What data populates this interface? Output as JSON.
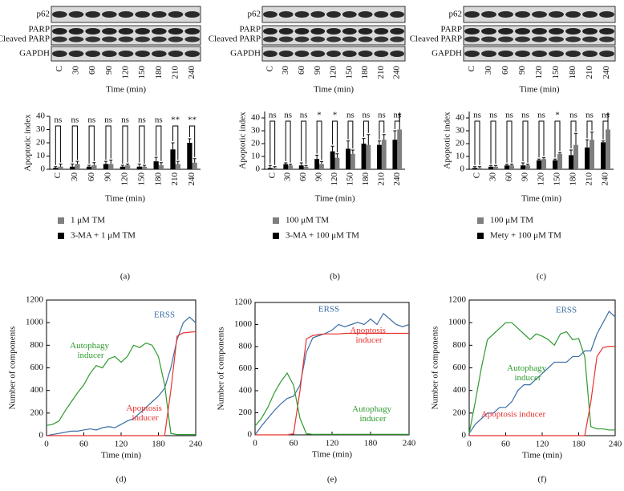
{
  "blots": [
    {
      "rows": [
        "p62",
        "PARP",
        "Cleaved PARP",
        "GAPDH"
      ],
      "lanes": [
        "C",
        "30",
        "60",
        "90",
        "120",
        "150",
        "180",
        "210",
        "240"
      ],
      "xlabel": "Time (min)"
    },
    {
      "rows": [
        "p62",
        "PARP",
        "Cleaved PARP",
        "GAPDH"
      ],
      "lanes": [
        "C",
        "30",
        "60",
        "90",
        "120",
        "150",
        "180",
        "210",
        "240"
      ],
      "xlabel": "Time (min)"
    },
    {
      "rows": [
        "p62",
        "PARP",
        "Cleaved PARP",
        "GAPDH"
      ],
      "lanes": [
        "C",
        "30",
        "60",
        "90",
        "120",
        "150",
        "180",
        "210",
        "240"
      ],
      "xlabel": "Time (min)"
    }
  ],
  "chart_data": [
    {
      "type": "bar",
      "ylabel": "Apoptotic index",
      "xlabel": "Time (min)",
      "categories": [
        "C",
        "30",
        "60",
        "90",
        "120",
        "150",
        "180",
        "210",
        "240"
      ],
      "ylim": [
        0,
        40
      ],
      "yticks": [
        0,
        10,
        20,
        30,
        40
      ],
      "annotations": [
        "ns",
        "ns",
        "ns",
        "ns",
        "ns",
        "ns",
        "ns",
        "**",
        "**"
      ],
      "series": [
        {
          "name": "1 μM TM",
          "color": "#7f7f7f",
          "values": [
            2,
            4,
            3,
            4,
            3,
            2,
            3,
            4,
            5
          ],
          "errors": [
            2,
            2,
            2,
            3,
            1,
            1,
            2,
            2,
            3
          ]
        },
        {
          "name": "3-MA + 1 μM TM",
          "color": "#000000",
          "values": [
            1,
            2,
            2,
            4,
            2,
            2,
            6,
            15,
            20
          ],
          "errors": [
            1,
            2,
            1,
            2,
            1,
            2,
            3,
            5,
            3
          ]
        }
      ]
    },
    {
      "type": "bar",
      "ylabel": "Apoptotic index",
      "xlabel": "Time (min)",
      "categories": [
        "C",
        "30",
        "60",
        "90",
        "120",
        "150",
        "180",
        "210",
        "240"
      ],
      "ylim": [
        0,
        45
      ],
      "yticks": [
        0,
        10,
        20,
        30,
        40
      ],
      "annotations": [
        "ns",
        "ns",
        "ns",
        "*",
        "*",
        "ns",
        "ns",
        "ns",
        "ns"
      ],
      "series": [
        {
          "name": "100 μM TM",
          "color": "#7f7f7f",
          "values": [
            1,
            3,
            2,
            4,
            9,
            12,
            19,
            23,
            31
          ],
          "errors": [
            1,
            1,
            1,
            2,
            3,
            3,
            8,
            4,
            12
          ]
        },
        {
          "name": "3-MA + 100 μM TM",
          "color": "#000000",
          "values": [
            1,
            4,
            3,
            8,
            14,
            16,
            20,
            19,
            23
          ],
          "errors": [
            2,
            1,
            2,
            3,
            4,
            6,
            4,
            3,
            7
          ]
        }
      ]
    },
    {
      "type": "bar",
      "ylabel": "Apoptotic index",
      "xlabel": "Time (min)",
      "categories": [
        "C",
        "30",
        "60",
        "90",
        "120",
        "150",
        "180",
        "210",
        "240"
      ],
      "ylim": [
        0,
        45
      ],
      "yticks": [
        0,
        10,
        20,
        30,
        40
      ],
      "annotations": [
        "ns",
        "ns",
        "ns",
        "ns",
        "ns",
        "*",
        "ns",
        "ns",
        "ns"
      ],
      "series": [
        {
          "name": "100 μM TM",
          "color": "#7f7f7f",
          "values": [
            1,
            2,
            3,
            3,
            8,
            12,
            19,
            23,
            31
          ],
          "errors": [
            1,
            1,
            1,
            1,
            1,
            1,
            9,
            6,
            12
          ]
        },
        {
          "name": "Mety + 100 μM TM",
          "color": "#000000",
          "values": [
            1,
            2,
            3,
            3,
            7,
            7,
            11,
            17,
            21
          ],
          "errors": [
            1,
            1,
            1,
            2,
            1,
            1,
            4,
            6,
            1
          ]
        }
      ]
    },
    {
      "type": "line",
      "ylabel": "Number of components",
      "xlabel": "Time (min)",
      "xlim": [
        0,
        240
      ],
      "xticks": [
        0,
        60,
        120,
        180,
        240
      ],
      "ylim": [
        0,
        1200
      ],
      "yticks": [
        0,
        200,
        400,
        600,
        800,
        1000,
        1200
      ],
      "x": [
        0,
        10,
        20,
        30,
        40,
        50,
        60,
        70,
        80,
        90,
        100,
        110,
        120,
        130,
        140,
        150,
        160,
        170,
        180,
        190,
        200,
        210,
        220,
        230,
        240
      ],
      "series": [
        {
          "name": "ERSS",
          "color": "#3b6ea5",
          "values": [
            0,
            10,
            20,
            30,
            40,
            40,
            50,
            60,
            50,
            70,
            80,
            70,
            100,
            130,
            150,
            200,
            250,
            300,
            350,
            420,
            600,
            850,
            1000,
            1050,
            1000
          ]
        },
        {
          "name": "Autophagy inducer",
          "color": "#2e9a2e",
          "values": [
            90,
            100,
            130,
            220,
            300,
            380,
            450,
            550,
            620,
            600,
            680,
            700,
            650,
            700,
            800,
            780,
            820,
            800,
            700,
            450,
            20,
            10,
            10,
            10,
            10
          ]
        },
        {
          "name": "Apoptosis inducer",
          "color": "#e8322e",
          "values": [
            0,
            0,
            0,
            0,
            0,
            0,
            0,
            0,
            0,
            0,
            0,
            0,
            0,
            0,
            0,
            0,
            0,
            0,
            0,
            0,
            400,
            880,
            910,
            915,
            920
          ]
        }
      ]
    },
    {
      "type": "line",
      "ylabel": "Number of components",
      "xlabel": "Time (min)",
      "xlim": [
        0,
        240
      ],
      "xticks": [
        0,
        60,
        120,
        180,
        240
      ],
      "ylim": [
        0,
        1200
      ],
      "yticks": [
        0,
        200,
        400,
        600,
        800,
        1000,
        1200
      ],
      "x": [
        0,
        10,
        20,
        30,
        40,
        50,
        60,
        70,
        80,
        90,
        100,
        110,
        120,
        130,
        140,
        150,
        160,
        170,
        180,
        190,
        200,
        210,
        220,
        230,
        240
      ],
      "series": [
        {
          "name": "ERSS",
          "color": "#3b6ea5",
          "values": [
            0,
            80,
            150,
            220,
            280,
            330,
            350,
            450,
            750,
            880,
            900,
            920,
            950,
            1000,
            980,
            1000,
            1020,
            1000,
            1050,
            1000,
            1100,
            1050,
            1000,
            980,
            1000
          ]
        },
        {
          "name": "Apoptosis inducer",
          "color": "#e8322e",
          "values": [
            0,
            0,
            0,
            0,
            0,
            0,
            10,
            400,
            870,
            900,
            910,
            915,
            915,
            915,
            920,
            920,
            920,
            920,
            920,
            920,
            920,
            920,
            920,
            920,
            920
          ]
        },
        {
          "name": "Autophagy inducer",
          "color": "#2e9a2e",
          "values": [
            80,
            150,
            250,
            380,
            480,
            560,
            450,
            150,
            10,
            5,
            5,
            5,
            5,
            5,
            5,
            5,
            5,
            5,
            5,
            5,
            5,
            5,
            5,
            5,
            5
          ]
        }
      ]
    },
    {
      "type": "line",
      "ylabel": "Number of components",
      "xlabel": "Time (min)",
      "xlim": [
        0,
        240
      ],
      "xticks": [
        0,
        60,
        120,
        180,
        240
      ],
      "ylim": [
        0,
        1200
      ],
      "yticks": [
        0,
        200,
        400,
        600,
        800,
        1000,
        1200
      ],
      "x": [
        0,
        10,
        20,
        30,
        40,
        50,
        60,
        70,
        80,
        90,
        100,
        110,
        120,
        130,
        140,
        150,
        160,
        170,
        180,
        190,
        200,
        210,
        220,
        230,
        240
      ],
      "series": [
        {
          "name": "ERSS",
          "color": "#3b6ea5",
          "values": [
            20,
            100,
            150,
            200,
            200,
            250,
            250,
            300,
            400,
            450,
            450,
            500,
            550,
            600,
            650,
            650,
            650,
            700,
            700,
            750,
            750,
            900,
            1000,
            1100,
            1050
          ]
        },
        {
          "name": "Autophagy inducer",
          "color": "#2e9a2e",
          "values": [
            20,
            300,
            600,
            850,
            900,
            950,
            1000,
            1000,
            950,
            900,
            850,
            900,
            880,
            850,
            800,
            900,
            920,
            850,
            860,
            700,
            80,
            60,
            60,
            50,
            50
          ]
        },
        {
          "name": "Apoptosis inducer",
          "color": "#e8322e",
          "values": [
            0,
            0,
            0,
            0,
            0,
            0,
            0,
            0,
            0,
            0,
            0,
            0,
            0,
            0,
            0,
            0,
            0,
            0,
            0,
            0,
            300,
            700,
            780,
            790,
            790
          ]
        }
      ]
    }
  ],
  "panel_labels": [
    "(a)",
    "(b)",
    "(c)",
    "(d)",
    "(e)",
    "(f)"
  ]
}
